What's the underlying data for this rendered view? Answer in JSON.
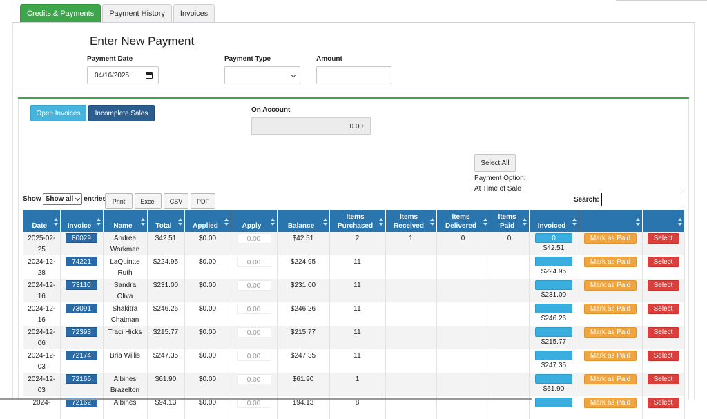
{
  "tabs": [
    {
      "label": "Credits & Payments",
      "active": true
    },
    {
      "label": "Payment History",
      "active": false
    },
    {
      "label": "Invoices",
      "active": false
    }
  ],
  "form": {
    "heading": "Enter New Payment",
    "payment_date_label": "Payment Date",
    "payment_date_value": "04/16/2025",
    "payment_type_label": "Payment Type",
    "payment_type_value": "",
    "amount_label": "Amount",
    "amount_value": ""
  },
  "buttons": {
    "open_invoices": "Open Invoices",
    "incomplete_sales": "Incomplete Sales",
    "select_all": "Select All"
  },
  "on_account": {
    "label": "On Account",
    "value": "0.00"
  },
  "payment_option": {
    "line1": "Payment Option:",
    "line2": "At Time of Sale"
  },
  "table_controls": {
    "show_label": "Show",
    "show_value": "Show all",
    "entries_label": "entries",
    "export_buttons": [
      "Print",
      "Excel",
      "CSV",
      "PDF"
    ],
    "search_label": "Search:",
    "search_value": ""
  },
  "columns": [
    "Date",
    "Invoice",
    "Name",
    "Total",
    "Applied",
    "Apply",
    "Balance",
    "Items Purchased",
    "Items Received",
    "Items Delivered",
    "Items Paid",
    "Invoiced",
    "",
    ""
  ],
  "row_actions": {
    "mark_paid": "Mark as Paid",
    "select": "Select"
  },
  "rows": [
    {
      "date": "2025-02-25",
      "invoice": "80029",
      "name": "Andrea Workman",
      "total": "$42.51",
      "applied": "$0.00",
      "apply": "0.00",
      "balance": "$42.51",
      "purchased": "2",
      "received": "1",
      "delivered": "0",
      "paid": "0",
      "invoiced_btn": "0",
      "invoiced_amt": "$42.51"
    },
    {
      "date": "2024-12-28",
      "invoice": "74221",
      "name": "LaQuintte Ruth",
      "total": "$224.95",
      "applied": "$0.00",
      "apply": "0.00",
      "balance": "$224.95",
      "purchased": "11",
      "received": "",
      "delivered": "",
      "paid": "",
      "invoiced_btn": "",
      "invoiced_amt": "$224.95"
    },
    {
      "date": "2024-12-16",
      "invoice": "73110",
      "name": "Sandra Oliva",
      "total": "$231.00",
      "applied": "$0.00",
      "apply": "0.00",
      "balance": "$231.00",
      "purchased": "11",
      "received": "",
      "delivered": "",
      "paid": "",
      "invoiced_btn": "",
      "invoiced_amt": "$231.00"
    },
    {
      "date": "2024-12-16",
      "invoice": "73091",
      "name": "Shakitra Chatman",
      "total": "$246.26",
      "applied": "$0.00",
      "apply": "0.00",
      "balance": "$246.26",
      "purchased": "11",
      "received": "",
      "delivered": "",
      "paid": "",
      "invoiced_btn": "",
      "invoiced_amt": "$246.26"
    },
    {
      "date": "2024-12-06",
      "invoice": "72393",
      "name": "Traci Hicks",
      "total": "$215.77",
      "applied": "$0.00",
      "apply": "0.00",
      "balance": "$215.77",
      "purchased": "11",
      "received": "",
      "delivered": "",
      "paid": "",
      "invoiced_btn": "",
      "invoiced_amt": "$215.77"
    },
    {
      "date": "2024-12-03",
      "invoice": "72174",
      "name": "Bria Willis",
      "total": "$247.35",
      "applied": "$0.00",
      "apply": "0.00",
      "balance": "$247.35",
      "purchased": "11",
      "received": "",
      "delivered": "",
      "paid": "",
      "invoiced_btn": "",
      "invoiced_amt": "$247.35"
    },
    {
      "date": "2024-12-03",
      "invoice": "72166",
      "name": "Albines Brazelton",
      "total": "$61.90",
      "applied": "$0.00",
      "apply": "0.00",
      "balance": "$61.90",
      "purchased": "1",
      "received": "",
      "delivered": "",
      "paid": "",
      "invoiced_btn": "",
      "invoiced_amt": "$61.90"
    },
    {
      "date": "2024-",
      "invoice": "72162",
      "name": "Albines",
      "total": "$94.13",
      "applied": "$0.00",
      "apply": "0.00",
      "balance": "$94.13",
      "purchased": "8",
      "received": "",
      "delivered": "",
      "paid": "",
      "invoiced_btn": "",
      "invoiced_amt": ""
    }
  ]
}
